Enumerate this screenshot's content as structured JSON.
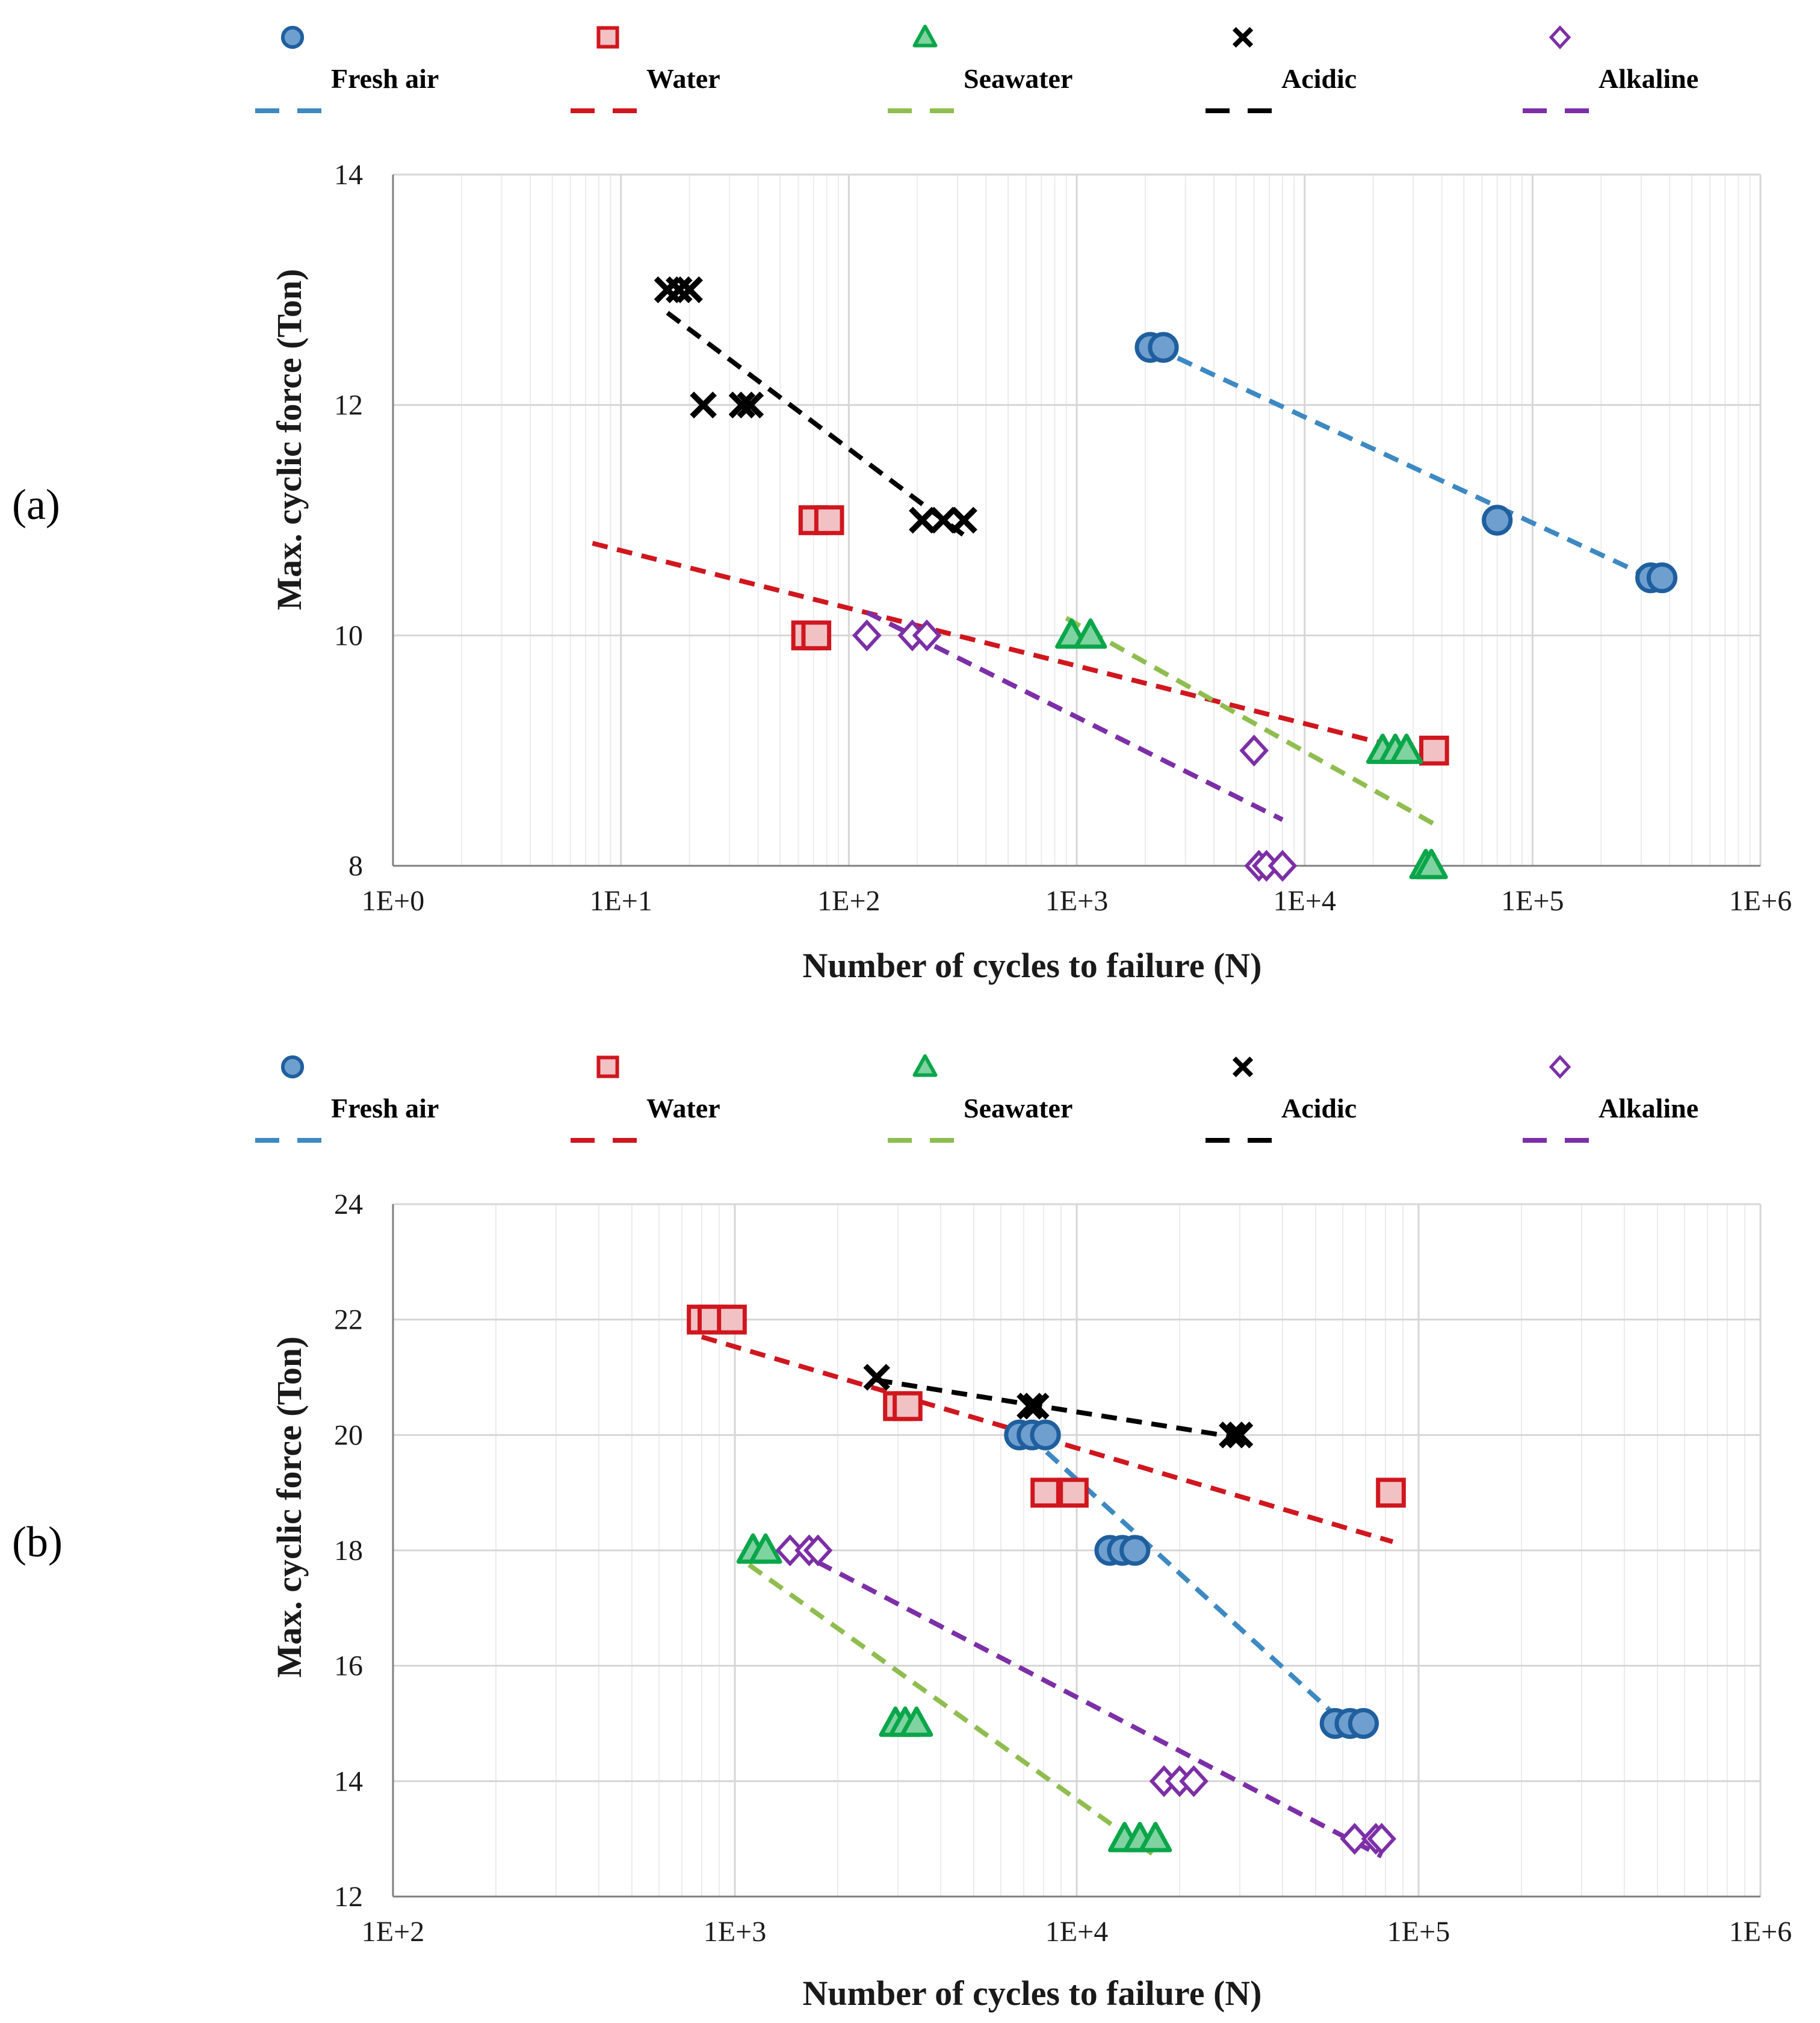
{
  "chart_data": [
    {
      "type": "scatter",
      "panel_label": "(a)",
      "xlabel": "Number of cycles to failure (N)",
      "ylabel": "Max. cyclic force (Ton)",
      "xscale": "log",
      "xlim": [
        1,
        1000000
      ],
      "ylim": [
        8,
        14
      ],
      "x_ticks": [
        1,
        10,
        100,
        1000,
        10000,
        100000,
        1000000
      ],
      "x_tick_labels": [
        "1E+0",
        "1E+1",
        "1E+2",
        "1E+3",
        "1E+4",
        "1E+5",
        "1E+6"
      ],
      "y_ticks": [
        8,
        10,
        12,
        14
      ],
      "y_tick_labels": [
        "8",
        "10",
        "12",
        "14"
      ],
      "grid": true,
      "legend_position": "top",
      "series": [
        {
          "name": "Fresh air",
          "marker": "circle",
          "color": "#1f5f9e",
          "fill": "#6f9fcf",
          "trend_color": "#3d89c2",
          "points": [
            [
              2100,
              12.5
            ],
            [
              2400,
              12.5
            ],
            [
              70000,
              11.0
            ],
            [
              330000,
              10.5
            ],
            [
              370000,
              10.5
            ]
          ],
          "trend": [
            [
              2200,
              12.5
            ],
            [
              330000,
              10.5
            ]
          ]
        },
        {
          "name": "Water",
          "marker": "square",
          "color": "#d0161e",
          "fill": "#f2c1c3",
          "trend_color": "#d0161e",
          "points": [
            [
              70,
              11.0
            ],
            [
              82,
              11.0
            ],
            [
              65,
              10.0
            ],
            [
              72,
              10.0
            ],
            [
              37000,
              9.0
            ]
          ],
          "trend": [
            [
              7.5,
              10.8
            ],
            [
              37000,
              8.95
            ]
          ]
        },
        {
          "name": "Seawater",
          "marker": "triangle",
          "color": "#0aa64a",
          "fill": "#7fd3a0",
          "trend_color": "#8fbd4f",
          "points": [
            [
              950,
              10.0
            ],
            [
              1150,
              10.0
            ],
            [
              22000,
              9.0
            ],
            [
              25000,
              9.0
            ],
            [
              28000,
              9.0
            ],
            [
              34000,
              8.0
            ],
            [
              36000,
              8.0
            ]
          ],
          "trend": [
            [
              900,
              10.15
            ],
            [
              38000,
              8.35
            ]
          ]
        },
        {
          "name": "Acidic",
          "marker": "x",
          "color": "#000000",
          "fill": "#000000",
          "trend_color": "#000000",
          "points": [
            [
              16,
              13.0
            ],
            [
              18,
              13.0
            ],
            [
              20,
              13.0
            ],
            [
              23,
              12.0
            ],
            [
              34,
              12.0
            ],
            [
              37,
              12.0
            ],
            [
              210,
              11.0
            ],
            [
              260,
              11.0
            ],
            [
              320,
              11.0
            ]
          ],
          "trend": [
            [
              16,
              12.8
            ],
            [
              330,
              10.85
            ]
          ]
        },
        {
          "name": "Alkaline",
          "marker": "diamond",
          "color": "#7c2fa6",
          "fill": "#ffffff",
          "trend_color": "#7c2fa6",
          "points": [
            [
              120,
              10.0
            ],
            [
              190,
              10.0
            ],
            [
              220,
              10.0
            ],
            [
              6000,
              9.0
            ],
            [
              6300,
              8.0
            ],
            [
              6800,
              8.0
            ],
            [
              8000,
              8.0
            ]
          ],
          "trend": [
            [
              120,
              10.2
            ],
            [
              8000,
              8.4
            ]
          ]
        }
      ]
    },
    {
      "type": "scatter",
      "panel_label": "(b)",
      "xlabel": "Number of cycles to failure (N)",
      "ylabel": "Max. cyclic force (Ton)",
      "xscale": "log",
      "xlim": [
        100,
        1000000
      ],
      "ylim": [
        12,
        24
      ],
      "x_ticks": [
        100,
        1000,
        10000,
        100000,
        1000000
      ],
      "x_tick_labels": [
        "1E+2",
        "1E+3",
        "1E+4",
        "1E+5",
        "1E+6"
      ],
      "y_ticks": [
        12,
        14,
        16,
        18,
        20,
        22,
        24
      ],
      "y_tick_labels": [
        "12",
        "14",
        "16",
        "18",
        "20",
        "22",
        "24"
      ],
      "grid": true,
      "legend_position": "top",
      "series": [
        {
          "name": "Fresh air",
          "marker": "circle",
          "color": "#1f5f9e",
          "fill": "#6f9fcf",
          "trend_color": "#3d89c2",
          "points": [
            [
              6800,
              20.0
            ],
            [
              7400,
              20.0
            ],
            [
              8100,
              20.0
            ],
            [
              12500,
              18.0
            ],
            [
              13600,
              18.0
            ],
            [
              14800,
              18.0
            ],
            [
              57000,
              15.0
            ],
            [
              63000,
              15.0
            ],
            [
              69000,
              15.0
            ]
          ],
          "trend": [
            [
              7200,
              20.0
            ],
            [
              66000,
              14.8
            ]
          ]
        },
        {
          "name": "Water",
          "marker": "square",
          "color": "#d0161e",
          "fill": "#f2c1c3",
          "trend_color": "#d0161e",
          "points": [
            [
              800,
              22.0
            ],
            [
              860,
              22.0
            ],
            [
              980,
              22.0
            ],
            [
              3000,
              20.5
            ],
            [
              3200,
              20.5
            ],
            [
              8100,
              19.0
            ],
            [
              9800,
              19.0
            ],
            [
              83000,
              19.0
            ]
          ],
          "trend": [
            [
              800,
              21.7
            ],
            [
              84000,
              18.15
            ]
          ]
        },
        {
          "name": "Seawater",
          "marker": "triangle",
          "color": "#0aa64a",
          "fill": "#7fd3a0",
          "trend_color": "#8fbd4f",
          "points": [
            [
              1130,
              18.0
            ],
            [
              1230,
              18.0
            ],
            [
              2950,
              15.0
            ],
            [
              3150,
              15.0
            ],
            [
              3400,
              15.0
            ],
            [
              13800,
              13.0
            ],
            [
              15300,
              13.0
            ],
            [
              17000,
              13.0
            ]
          ],
          "trend": [
            [
              1100,
              17.75
            ],
            [
              17500,
              12.65
            ]
          ]
        },
        {
          "name": "Acidic",
          "marker": "x",
          "color": "#000000",
          "fill": "#000000",
          "trend_color": "#000000",
          "points": [
            [
              2600,
              21.0
            ],
            [
              7300,
              20.5
            ],
            [
              7600,
              20.5
            ],
            [
              28500,
              20.0
            ],
            [
              30000,
              20.0
            ]
          ],
          "trend": [
            [
              2600,
              20.95
            ],
            [
              30000,
              19.95
            ]
          ]
        },
        {
          "name": "Alkaline",
          "marker": "diamond",
          "color": "#7c2fa6",
          "fill": "#ffffff",
          "trend_color": "#7c2fa6",
          "points": [
            [
              1450,
              18.0
            ],
            [
              1650,
              18.0
            ],
            [
              1750,
              18.0
            ],
            [
              18000,
              14.0
            ],
            [
              20000,
              14.0
            ],
            [
              22000,
              14.0
            ],
            [
              65000,
              13.0
            ],
            [
              75000,
              13.0
            ],
            [
              78000,
              13.0
            ]
          ],
          "trend": [
            [
              1500,
              18.0
            ],
            [
              78000,
              12.7
            ]
          ]
        }
      ]
    }
  ]
}
